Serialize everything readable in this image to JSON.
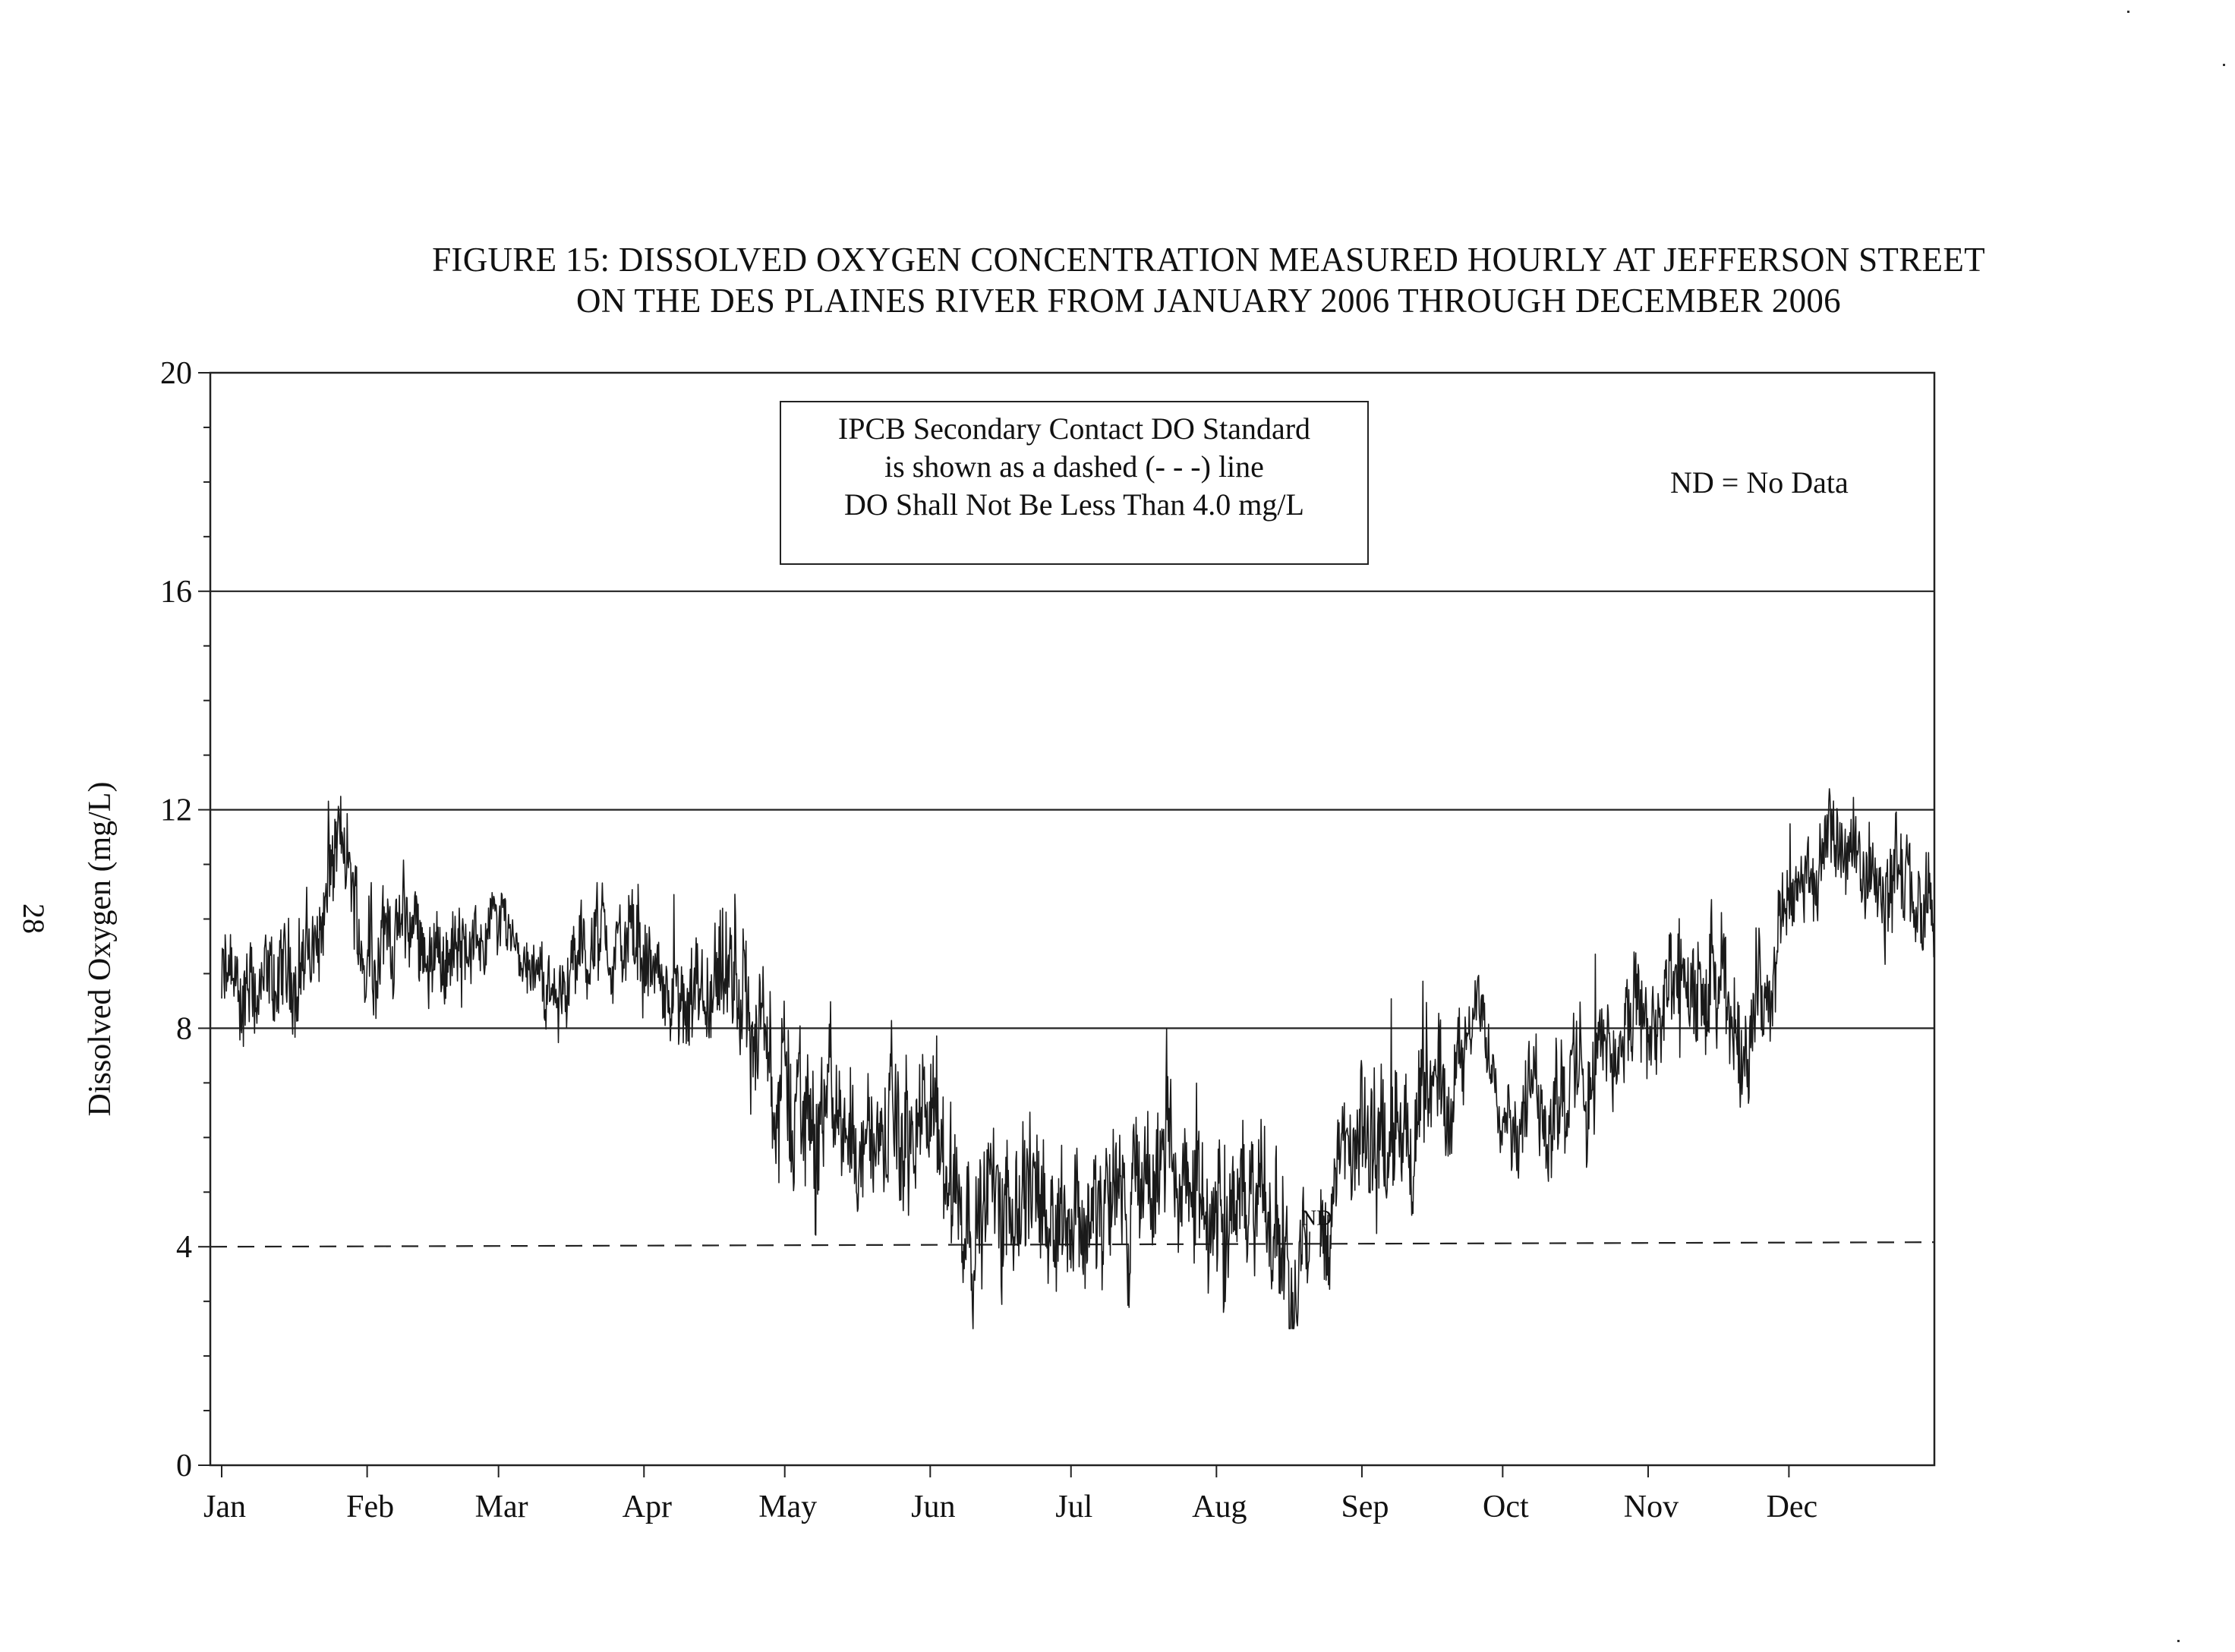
{
  "page": {
    "page_number": "28"
  },
  "chart_data": {
    "type": "line",
    "title": "FIGURE 15: DISSOLVED OXYGEN CONCENTRATION MEASURED HOURLY AT JEFFERSON STREET",
    "subtitle": "ON THE DES PLAINES RIVER FROM JANUARY 2006 THROUGH DECEMBER 2006",
    "xlabel": "",
    "ylabel": "Dissolved Oxygen (mg/L)",
    "ylim": [
      0,
      20
    ],
    "y_ticks": [
      "0",
      "4",
      "8",
      "12",
      "16",
      "20"
    ],
    "x_ticks": [
      "Jan",
      "Feb",
      "Mar",
      "Apr",
      "May",
      "Jun",
      "Jul",
      "Aug",
      "Sep",
      "Oct",
      "Nov",
      "Dec"
    ],
    "horizontal_gridlines": [
      8,
      12,
      16
    ],
    "standard_line": {
      "value": 4.0,
      "style": "dashed"
    },
    "legend_box": [
      "IPCB Secondary Contact DO Standard",
      "is shown as a dashed (- - -) line",
      "DO Shall Not Be Less Than 4.0 mg/L"
    ],
    "note": "ND = No Data",
    "gap_label": "ND",
    "gap_range_days": [
      232,
      234
    ],
    "series_color": "#1a1a1a",
    "envelope": {
      "day": [
        0,
        10,
        20,
        25,
        30,
        40,
        50,
        60,
        70,
        80,
        90,
        100,
        110,
        120,
        130,
        140,
        150,
        160,
        170,
        180,
        190,
        200,
        210,
        220,
        230,
        240,
        250,
        260,
        268,
        275,
        285,
        295,
        305,
        315,
        325,
        335,
        345,
        355,
        364
      ],
      "mean_do": [
        8.7,
        8.5,
        9.6,
        11.5,
        9.5,
        9.8,
        9.2,
        10.1,
        8.6,
        9.6,
        9.3,
        7.8,
        8.7,
        6.7,
        6.4,
        5.9,
        6.0,
        4.6,
        5.3,
        4.8,
        4.4,
        5.3,
        4.6,
        4.8,
        3.6,
        5.5,
        6.0,
        6.6,
        8.4,
        6.4,
        6.8,
        7.5,
        8.2,
        8.6,
        7.9,
        10.4,
        11.3,
        10.9,
        9.8
      ],
      "spread": [
        0.9,
        0.8,
        1.0,
        0.8,
        0.9,
        0.8,
        0.7,
        0.5,
        0.6,
        0.8,
        0.8,
        0.8,
        1.2,
        1.3,
        1.2,
        1.1,
        1.3,
        1.0,
        1.3,
        1.1,
        1.2,
        1.2,
        1.1,
        1.2,
        1.0,
        1.1,
        1.1,
        1.0,
        0.5,
        0.8,
        1.0,
        0.9,
        1.0,
        1.1,
        1.0,
        0.7,
        0.7,
        0.9,
        0.7
      ],
      "daily_min": 2.5,
      "daily_max": 12.8
    }
  }
}
